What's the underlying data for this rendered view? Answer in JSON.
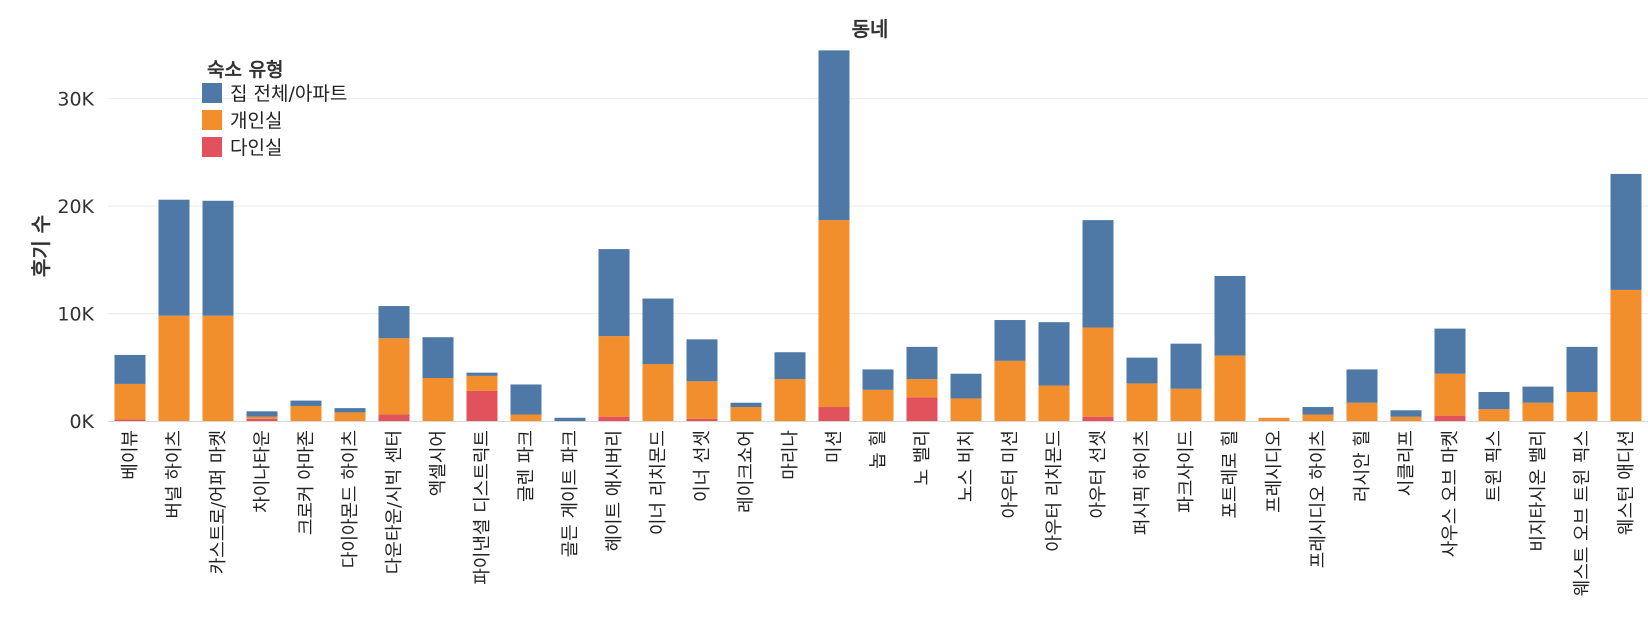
{
  "chart_data": {
    "type": "bar",
    "stacked": true,
    "title": "동네",
    "ylabel": "후기 수",
    "ylim": [
      0,
      35000
    ],
    "yticks": [
      {
        "value": 0,
        "label": "0K"
      },
      {
        "value": 10000,
        "label": "10K"
      },
      {
        "value": 20000,
        "label": "20K"
      },
      {
        "value": 30000,
        "label": "30K"
      }
    ],
    "grid": true,
    "legend": {
      "title": "숙소 유형",
      "placement": "top-left"
    },
    "categories": [
      "베이뷰",
      "버널 하이츠",
      "카스트로/어퍼 마켓",
      "차이나타운",
      "크로커 아마존",
      "다이아몬드 하이츠",
      "다운타운/시빅 센터",
      "엑셀시어",
      "파이낸셜 디스트릭트",
      "글렌 파크",
      "골든 게이트 파크",
      "헤이트 애시버리",
      "이너 리치몬드",
      "이너 선셋",
      "레이크쇼어",
      "마리나",
      "미션",
      "놉 힐",
      "노 밸리",
      "노스 비치",
      "아우터 미션",
      "아우터 리치몬드",
      "아우터 선셋",
      "퍼시픽 하이츠",
      "파크사이드",
      "포트레로 힐",
      "프레시디오",
      "프레시디오 하이츠",
      "러시안 힐",
      "시클리프",
      "사우스 오브 마켓",
      "트윈 픽스",
      "비지타시온 밸리",
      "웨스트 오브 트윈 픽스",
      "웨스턴 애디션"
    ],
    "series": [
      {
        "name": "다인실",
        "color": "#e2525c",
        "values": [
          150,
          0,
          0,
          200,
          0,
          0,
          600,
          0,
          2800,
          0,
          0,
          400,
          0,
          200,
          0,
          0,
          1300,
          0,
          2200,
          0,
          0,
          0,
          400,
          0,
          0,
          0,
          0,
          0,
          0,
          0,
          500,
          0,
          0,
          0,
          0
        ]
      },
      {
        "name": "개인실",
        "color": "#f28e2b",
        "values": [
          3300,
          9800,
          9800,
          200,
          1400,
          800,
          7100,
          4000,
          1400,
          600,
          0,
          7500,
          5300,
          3500,
          1300,
          3900,
          17400,
          2900,
          1700,
          2100,
          5600,
          3300,
          8300,
          3500,
          3000,
          6100,
          300,
          600,
          1700,
          400,
          3900,
          1100,
          1700,
          2700,
          12200
        ]
      },
      {
        "name": "집 전체/아파트",
        "color": "#4e79a7",
        "values": [
          2700,
          10800,
          10700,
          500,
          500,
          400,
          3000,
          3800,
          300,
          2800,
          300,
          8100,
          6100,
          3900,
          400,
          2500,
          15800,
          1900,
          3000,
          2300,
          3800,
          5900,
          10000,
          2400,
          4200,
          7400,
          0,
          700,
          3100,
          600,
          4200,
          1600,
          1500,
          4200,
          10800
        ]
      }
    ]
  }
}
